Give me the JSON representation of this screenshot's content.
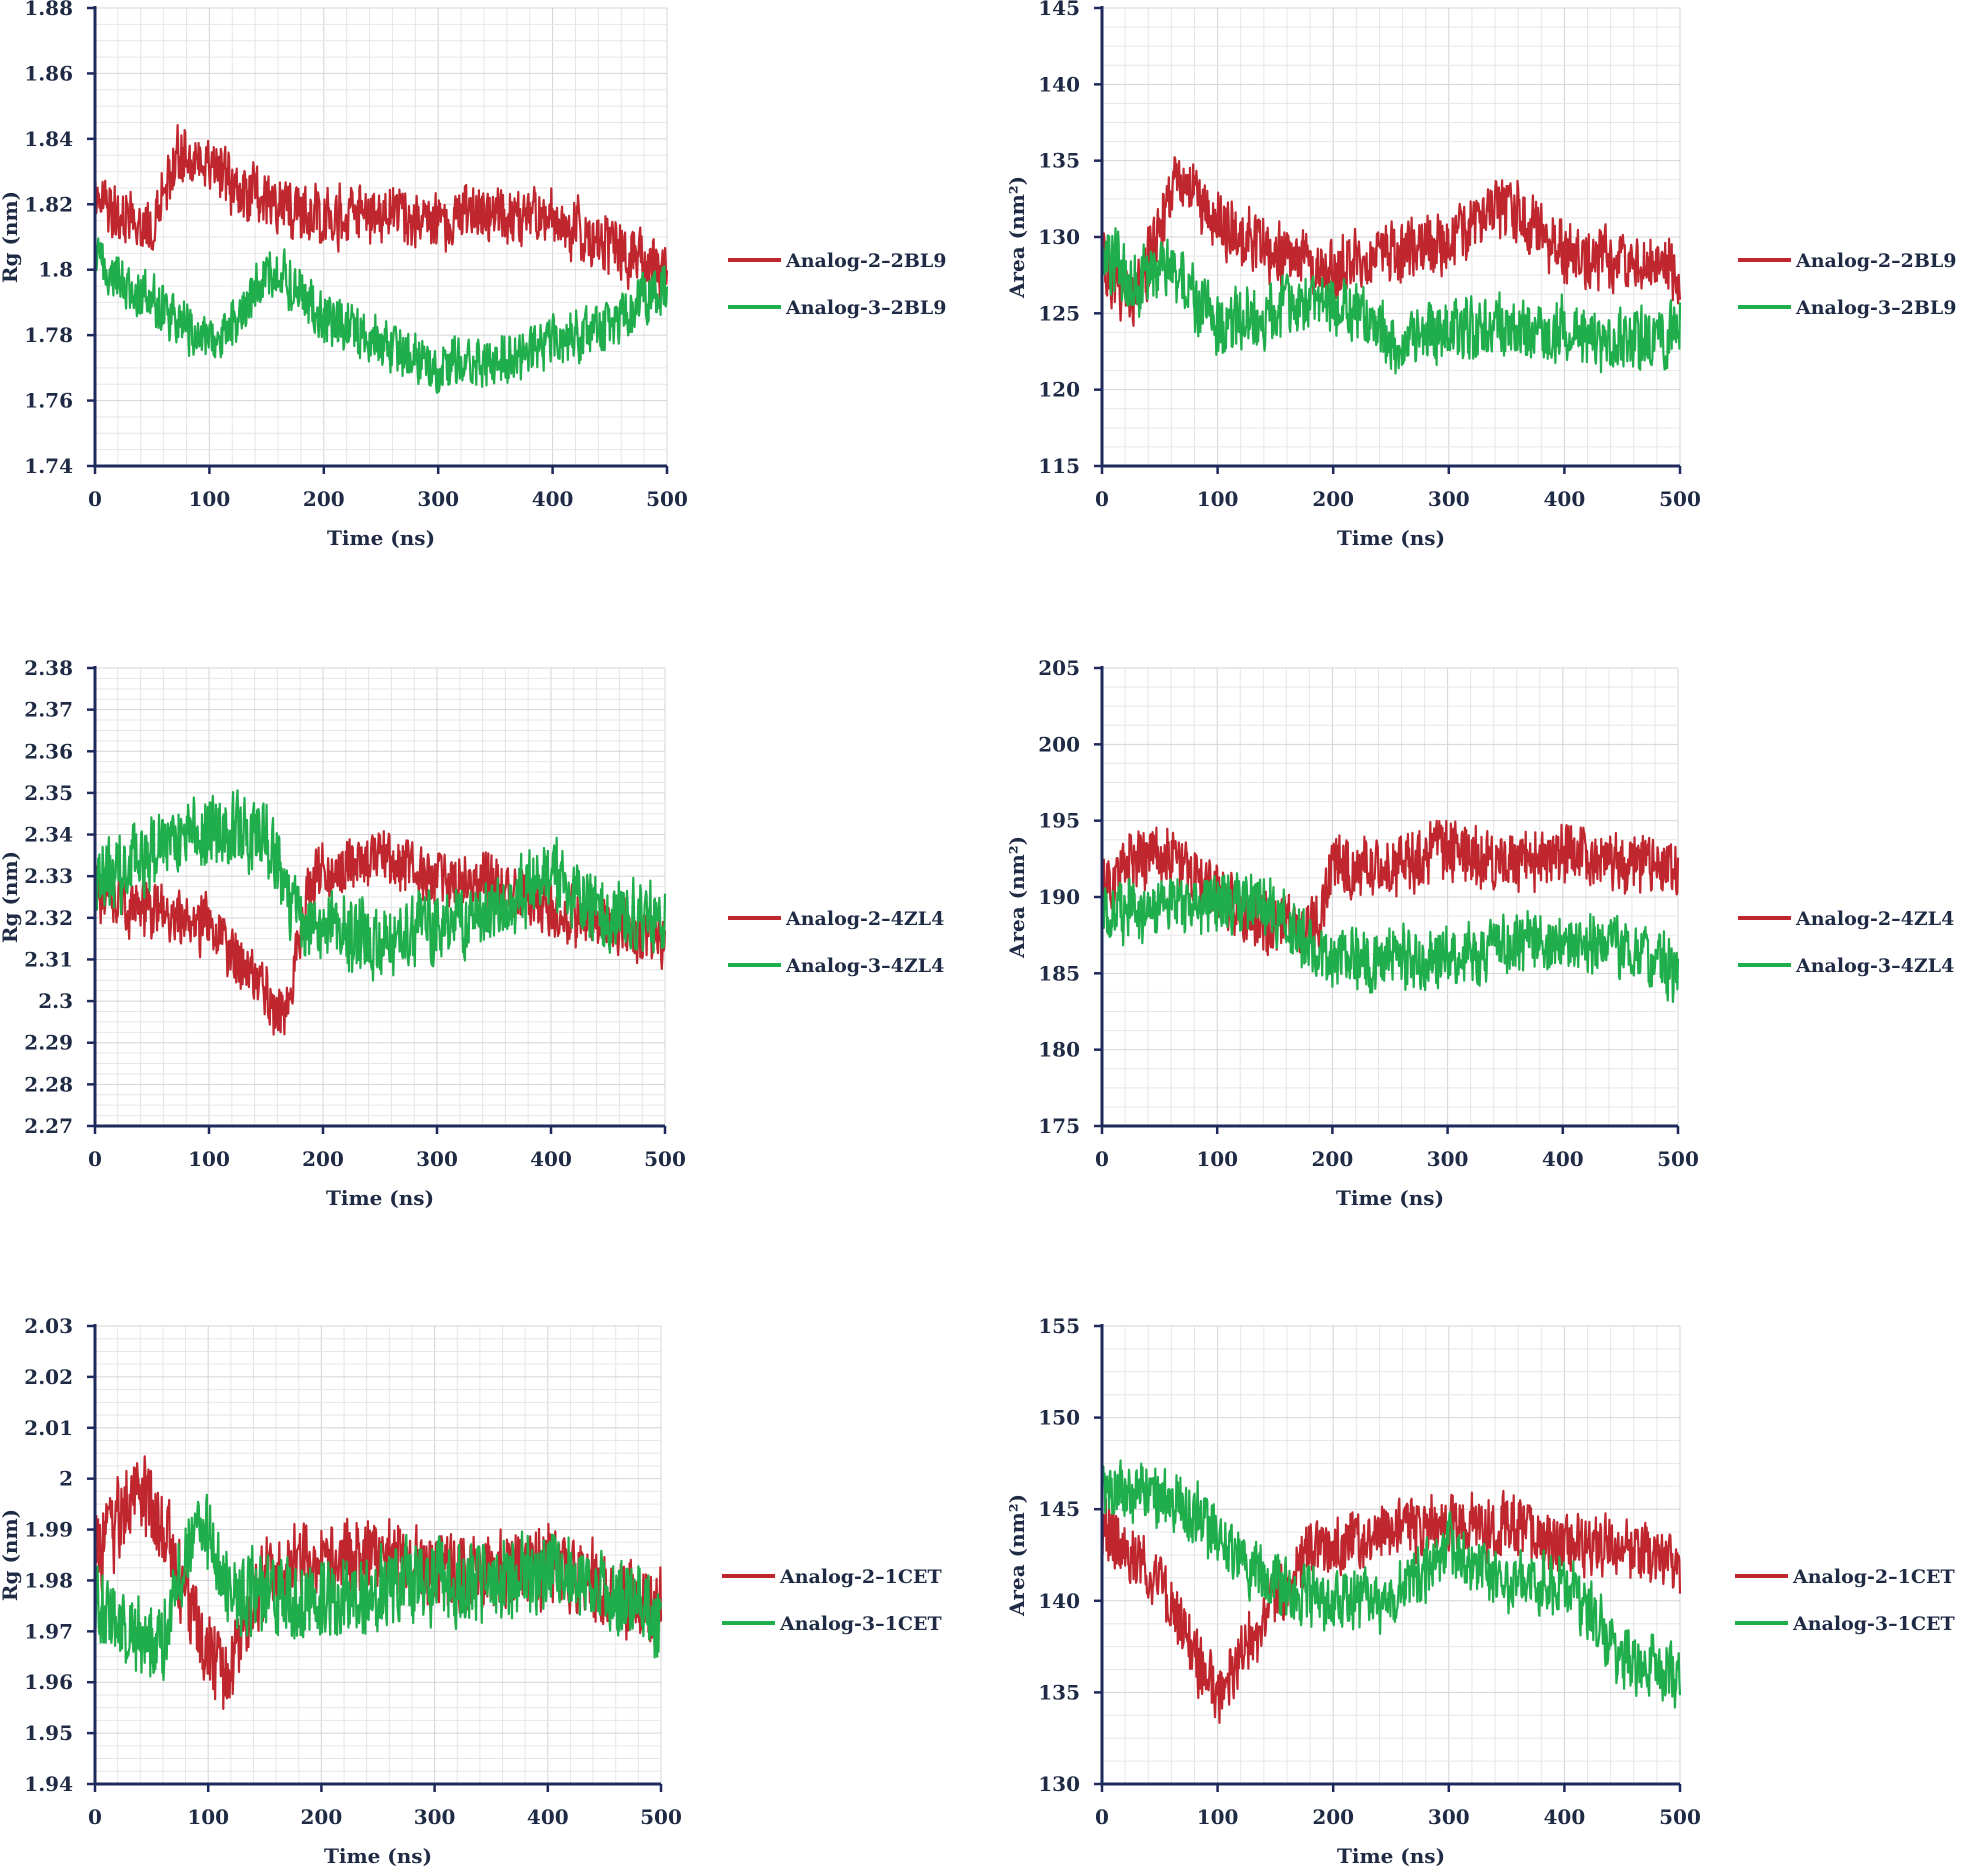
{
  "chart_data": [
    {
      "type": "line",
      "panel": "top-left",
      "xlabel": "Time (ns)",
      "ylabel": "Rg (nm)",
      "xlim": [
        0,
        500
      ],
      "ylim": [
        1.74,
        1.88
      ],
      "x_ticks": [
        "0",
        "100",
        "200",
        "300",
        "400",
        "500"
      ],
      "y_ticks": [
        "1.74",
        "1.76",
        "1.78",
        "1.8",
        "1.82",
        "1.84",
        "1.86",
        "1.88"
      ],
      "grid": true,
      "legend_position": "right",
      "series": [
        {
          "name": "Analog-2–2BL9",
          "color": "#c0262d",
          "x": [
            0,
            25,
            50,
            70,
            100,
            125,
            150,
            175,
            200,
            250,
            300,
            350,
            400,
            450,
            500
          ],
          "y": [
            1.825,
            1.815,
            1.812,
            1.835,
            1.832,
            1.825,
            1.82,
            1.818,
            1.816,
            1.818,
            1.815,
            1.818,
            1.815,
            1.808,
            1.8
          ],
          "noise": 0.008
        },
        {
          "name": "Analog-3–2BL9",
          "color": "#1fae4b",
          "x": [
            0,
            25,
            50,
            75,
            100,
            125,
            150,
            175,
            200,
            250,
            300,
            350,
            400,
            450,
            500
          ],
          "y": [
            1.805,
            1.795,
            1.79,
            1.785,
            1.778,
            1.785,
            1.8,
            1.795,
            1.785,
            1.778,
            1.77,
            1.772,
            1.778,
            1.782,
            1.795
          ],
          "noise": 0.007
        }
      ]
    },
    {
      "type": "line",
      "panel": "top-right",
      "xlabel": "Time (ns)",
      "ylabel": "Area (nm²)",
      "xlim": [
        0,
        500
      ],
      "ylim": [
        115,
        145
      ],
      "x_ticks": [
        "0",
        "100",
        "200",
        "300",
        "400",
        "500"
      ],
      "y_ticks": [
        "115",
        "120",
        "125",
        "130",
        "135",
        "140",
        "145"
      ],
      "grid": true,
      "legend_position": "right",
      "series": [
        {
          "name": "Analog-2–2BL9",
          "color": "#c0262d",
          "x": [
            0,
            30,
            65,
            100,
            150,
            200,
            250,
            300,
            350,
            400,
            450,
            500
          ],
          "y": [
            128,
            126,
            134,
            131,
            129,
            128,
            129,
            130,
            132,
            129,
            128,
            128
          ],
          "noise": 1.8
        },
        {
          "name": "Analog-3–2BL9",
          "color": "#1fae4b",
          "x": [
            0,
            30,
            60,
            100,
            150,
            200,
            250,
            300,
            350,
            400,
            450,
            500
          ],
          "y": [
            129,
            127,
            128,
            124,
            125,
            126,
            123,
            124,
            124,
            124,
            123,
            124
          ],
          "noise": 1.8
        }
      ]
    },
    {
      "type": "line",
      "panel": "middle-left",
      "xlabel": "Time (ns)",
      "ylabel": "Rg (nm)",
      "xlim": [
        0,
        500
      ],
      "ylim": [
        2.27,
        2.38
      ],
      "x_ticks": [
        "0",
        "100",
        "200",
        "300",
        "400",
        "500"
      ],
      "y_ticks": [
        "2.27",
        "2.28",
        "2.29",
        "2.3",
        "2.31",
        "2.32",
        "2.33",
        "2.34",
        "2.35",
        "2.36",
        "2.37",
        "2.38"
      ],
      "grid": true,
      "legend_position": "right",
      "series": [
        {
          "name": "Analog-2–4ZL4",
          "color": "#c0262d",
          "x": [
            0,
            50,
            100,
            140,
            165,
            190,
            250,
            300,
            350,
            400,
            450,
            500
          ],
          "y": [
            2.325,
            2.322,
            2.318,
            2.305,
            2.295,
            2.33,
            2.335,
            2.33,
            2.328,
            2.322,
            2.318,
            2.315
          ],
          "noise": 0.006
        },
        {
          "name": "Analog-3–4ZL4",
          "color": "#1fae4b",
          "x": [
            0,
            50,
            100,
            150,
            180,
            250,
            300,
            350,
            400,
            450,
            500
          ],
          "y": [
            2.328,
            2.335,
            2.342,
            2.34,
            2.318,
            2.315,
            2.318,
            2.322,
            2.33,
            2.32,
            2.32
          ],
          "noise": 0.008
        }
      ]
    },
    {
      "type": "line",
      "panel": "middle-right",
      "xlabel": "Time (ns)",
      "ylabel": "Area (nm²)",
      "xlim": [
        0,
        500
      ],
      "ylim": [
        175,
        205
      ],
      "x_ticks": [
        "0",
        "100",
        "200",
        "300",
        "400",
        "500"
      ],
      "y_ticks": [
        "175",
        "180",
        "185",
        "190",
        "195",
        "200",
        "205"
      ],
      "grid": true,
      "legend_position": "right",
      "series": [
        {
          "name": "Analog-2–4ZL4",
          "color": "#c0262d",
          "x": [
            0,
            50,
            100,
            150,
            185,
            200,
            250,
            300,
            350,
            400,
            450,
            500
          ],
          "y": [
            191,
            193,
            190,
            188,
            188,
            192,
            192,
            193,
            192,
            193,
            192,
            192
          ],
          "noise": 1.8
        },
        {
          "name": "Analog-3–4ZL4",
          "color": "#1fae4b",
          "x": [
            0,
            50,
            100,
            150,
            190,
            250,
            300,
            350,
            400,
            450,
            500
          ],
          "y": [
            189,
            189,
            190,
            189,
            186,
            186,
            186,
            187,
            187,
            187,
            185
          ],
          "noise": 1.8
        }
      ]
    },
    {
      "type": "line",
      "panel": "bottom-left",
      "xlabel": "Time (ns)",
      "ylabel": "Rg (nm)",
      "xlim": [
        0,
        500
      ],
      "ylim": [
        1.94,
        2.03
      ],
      "x_ticks": [
        "0",
        "100",
        "200",
        "300",
        "400",
        "500"
      ],
      "y_ticks": [
        "1.94",
        "1.95",
        "1.96",
        "1.97",
        "1.98",
        "1.99",
        "2",
        "2.01",
        "2.02",
        "2.03"
      ],
      "grid": true,
      "legend_position": "right",
      "series": [
        {
          "name": "Analog-2–1CET",
          "color": "#c0262d",
          "x": [
            0,
            40,
            60,
            100,
            115,
            150,
            200,
            250,
            300,
            350,
            400,
            450,
            500
          ],
          "y": [
            1.985,
            1.998,
            1.99,
            1.965,
            1.962,
            1.98,
            1.985,
            1.985,
            1.982,
            1.982,
            1.983,
            1.978,
            1.975
          ],
          "noise": 0.007
        },
        {
          "name": "Analog-3–1CET",
          "color": "#1fae4b",
          "x": [
            0,
            30,
            60,
            90,
            120,
            200,
            250,
            300,
            350,
            400,
            450,
            500
          ],
          "y": [
            1.975,
            1.97,
            1.968,
            1.992,
            1.978,
            1.975,
            1.978,
            1.98,
            1.98,
            1.982,
            1.978,
            1.972
          ],
          "noise": 0.007
        }
      ]
    },
    {
      "type": "line",
      "panel": "bottom-right",
      "xlabel": "Time (ns)",
      "ylabel": "Area (nm²)",
      "xlim": [
        0,
        500
      ],
      "ylim": [
        130,
        155
      ],
      "x_ticks": [
        "0",
        "100",
        "200",
        "300",
        "400",
        "500"
      ],
      "y_ticks": [
        "130",
        "135",
        "140",
        "145",
        "150",
        "155"
      ],
      "grid": true,
      "legend_position": "right",
      "series": [
        {
          "name": "Analog-2–1CET",
          "color": "#c0262d",
          "x": [
            0,
            50,
            80,
            100,
            130,
            170,
            200,
            250,
            300,
            350,
            400,
            450,
            500
          ],
          "y": [
            144,
            141,
            137,
            135,
            138,
            142,
            143,
            144,
            144,
            144,
            143,
            143,
            142
          ],
          "noise": 1.5
        },
        {
          "name": "Analog-3–1CET",
          "color": "#1fae4b",
          "x": [
            0,
            30,
            80,
            100,
            150,
            200,
            250,
            300,
            350,
            400,
            450,
            500
          ],
          "y": [
            146,
            146,
            145,
            143,
            141,
            140,
            140,
            143,
            141,
            141,
            137,
            136
          ],
          "noise": 1.5
        }
      ]
    }
  ]
}
